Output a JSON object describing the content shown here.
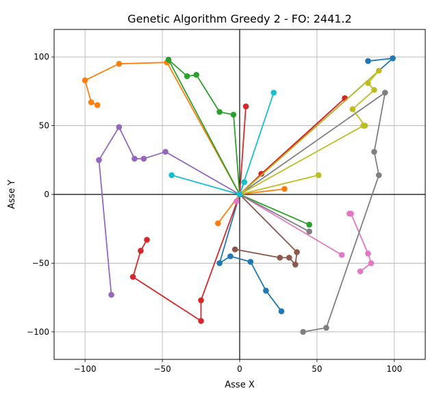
{
  "chart_data": {
    "type": "line",
    "title": "Genetic Algorithm Greedy 2 - FO: 2441.2",
    "xlabel": "Asse X",
    "ylabel": "Asse Y",
    "xlim": [
      -120,
      120
    ],
    "ylim": [
      -120,
      120
    ],
    "xticks": [
      -100,
      -50,
      0,
      50,
      100
    ],
    "yticks": [
      -100,
      -50,
      0,
      50,
      100
    ],
    "xtick_labels": [
      "−100",
      "−50",
      "0",
      "50",
      "100"
    ],
    "ytick_labels": [
      "−100",
      "−50",
      "0",
      "50",
      "100"
    ],
    "grid": true,
    "origin_axes": true,
    "markers": "circle",
    "series": [
      {
        "color": "#1f77b4",
        "points": [
          [
            0,
            0
          ],
          [
            99,
            99
          ],
          [
            83,
            97
          ]
        ]
      },
      {
        "color": "#1f77b4",
        "points": [
          [
            0,
            0
          ],
          [
            -13,
            -50
          ],
          [
            -6,
            -45
          ],
          [
            7,
            -49
          ],
          [
            17,
            -70
          ],
          [
            27,
            -85
          ]
        ]
      },
      {
        "color": "#ff7f0e",
        "points": [
          [
            0,
            0
          ],
          [
            -47,
            96
          ],
          [
            -78,
            95
          ],
          [
            -100,
            83
          ],
          [
            -96,
            67
          ],
          [
            -92,
            65
          ]
        ]
      },
      {
        "color": "#ff7f0e",
        "points": [
          [
            -14,
            -21
          ],
          [
            0,
            0
          ],
          [
            29,
            4
          ]
        ]
      },
      {
        "color": "#2ca02c",
        "points": [
          [
            0,
            0
          ],
          [
            -46,
            98
          ],
          [
            -34,
            86
          ],
          [
            -28,
            87
          ],
          [
            -13,
            60
          ],
          [
            -4,
            58
          ],
          [
            0,
            0
          ]
        ]
      },
      {
        "color": "#2ca02c",
        "points": [
          [
            0,
            0
          ],
          [
            45,
            -22
          ]
        ]
      },
      {
        "color": "#d62728",
        "points": [
          [
            0,
            0
          ],
          [
            68,
            70
          ],
          [
            14,
            15
          ],
          [
            0,
            0
          ],
          [
            4,
            64
          ]
        ]
      },
      {
        "color": "#d62728",
        "points": [
          [
            0,
            0
          ],
          [
            -25,
            -77
          ],
          [
            -25,
            -92
          ],
          [
            -69,
            -60
          ],
          [
            -64,
            -41
          ],
          [
            -60,
            -33
          ]
        ]
      },
      {
        "color": "#9467bd",
        "points": [
          [
            0,
            0
          ],
          [
            -48,
            31
          ],
          [
            -62,
            26
          ],
          [
            -68,
            26
          ],
          [
            -78,
            49
          ],
          [
            -91,
            25
          ],
          [
            -83,
            -73
          ]
        ]
      },
      {
        "color": "#8c564b",
        "points": [
          [
            0,
            0
          ],
          [
            37,
            -42
          ],
          [
            36,
            -51
          ],
          [
            32,
            -46
          ],
          [
            26,
            -46
          ],
          [
            -3,
            -40
          ]
        ]
      },
      {
        "color": "#e377c2",
        "points": [
          [
            -2,
            -5
          ],
          [
            0,
            0
          ],
          [
            66,
            -44
          ]
        ]
      },
      {
        "color": "#e377c2",
        "points": [
          [
            71,
            -14
          ],
          [
            72,
            -14
          ],
          [
            83,
            -43
          ],
          [
            85,
            -50
          ],
          [
            78,
            -56
          ]
        ]
      },
      {
        "color": "#7f7f7f",
        "points": [
          [
            0,
            0
          ],
          [
            45,
            -27
          ]
        ]
      },
      {
        "color": "#7f7f7f",
        "points": [
          [
            0,
            0
          ],
          [
            94,
            74
          ],
          [
            87,
            31
          ],
          [
            90,
            14
          ],
          [
            56,
            -97
          ],
          [
            41,
            -100
          ]
        ]
      },
      {
        "color": "#bcbd22",
        "points": [
          [
            0,
            0
          ],
          [
            51,
            14
          ]
        ]
      },
      {
        "color": "#bcbd22",
        "points": [
          [
            0,
            0
          ],
          [
            90,
            90
          ],
          [
            83,
            81
          ],
          [
            87,
            76
          ],
          [
            73,
            62
          ],
          [
            81,
            50
          ],
          [
            80,
            50
          ],
          [
            0,
            0
          ]
        ]
      },
      {
        "color": "#17becf",
        "points": [
          [
            22,
            74
          ],
          [
            0,
            0
          ],
          [
            -44,
            14
          ]
        ]
      },
      {
        "color": "#17becf",
        "points": [
          [
            0,
            0
          ],
          [
            3,
            9
          ]
        ]
      }
    ]
  }
}
